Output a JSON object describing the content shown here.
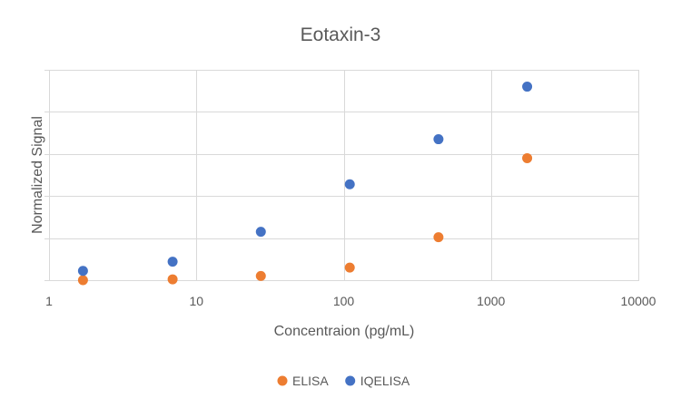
{
  "chart_data": {
    "type": "scatter",
    "title": "Eotaxin-3",
    "xlabel": "Concentraion (pg/mL)",
    "ylabel": "Normalized Signal",
    "x_scale": "log",
    "xlim": [
      1,
      10000
    ],
    "x_ticks": [
      "1",
      "10",
      "100",
      "1000",
      "10000"
    ],
    "ylim": [
      0,
      5
    ],
    "y_tick_labels_shown": false,
    "grid": true,
    "legend_position": "bottom",
    "series": [
      {
        "name": "ELISA",
        "color": "#ED7D31",
        "x": [
          1.7,
          6.9,
          27.4,
          110,
          440,
          1760
        ],
        "y": [
          0.0,
          0.02,
          0.1,
          0.3,
          1.02,
          2.9
        ]
      },
      {
        "name": "IQELISA",
        "color": "#4472C4",
        "x": [
          1.7,
          6.9,
          27.4,
          110,
          440,
          1760
        ],
        "y": [
          0.22,
          0.44,
          1.15,
          2.28,
          3.35,
          4.6
        ]
      }
    ]
  }
}
